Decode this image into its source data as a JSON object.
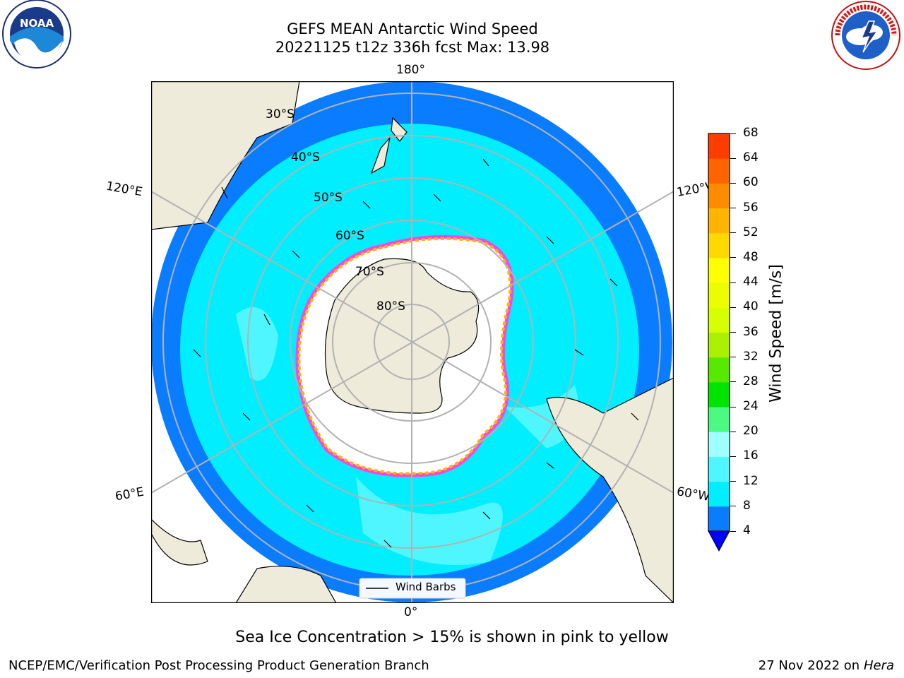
{
  "header": {
    "title_line1": "GEFS MEAN Antarctic Wind Speed",
    "title_line2": "20221125 t12z 336h fcst   Max: 13.98"
  },
  "map": {
    "lon_labels": {
      "top": "180°",
      "bottom": "0°",
      "upper_left": "120°E",
      "upper_right": "120°W",
      "lower_left": "60°E",
      "lower_right": "60°W"
    },
    "lat_labels": [
      "30°S",
      "40°S",
      "50°S",
      "60°S",
      "70°S",
      "80°S"
    ],
    "legend_label": "Wind Barbs",
    "colors": {
      "ocean_low": "#0a7cff",
      "ocean_mid": "#00eeff",
      "ocean_light": "#4ff6ff",
      "land": "#eeebdb",
      "ice": "#ffffff",
      "grid": "#b2b2b2"
    }
  },
  "colorbar": {
    "label": "Wind Speed [m/s]",
    "ticks": [
      "4",
      "8",
      "12",
      "16",
      "20",
      "24",
      "28",
      "32",
      "36",
      "40",
      "44",
      "48",
      "52",
      "56",
      "60",
      "64",
      "68"
    ],
    "colors": [
      "#0a7cff",
      "#00eeff",
      "#4ff6ff",
      "#a0ffff",
      "#4cfa82",
      "#00e400",
      "#55ea00",
      "#aaf000",
      "#d6ff00",
      "#ecfd00",
      "#ffff00",
      "#ffd800",
      "#ffb400",
      "#ff8c00",
      "#ff6400",
      "#ff3c00",
      "#ff0000"
    ],
    "under_color": "#0000ff"
  },
  "caption": "Sea Ice Concentration > 15% is shown in pink to yellow",
  "footer": {
    "left": "NCEP/EMC/Verification Post Processing Product Generation Branch",
    "right_date": "27 Nov 2022 on",
    "right_machine": "Hera"
  },
  "logos": {
    "left": "NOAA",
    "right": "NATIONAL WEATHER SERVICE"
  }
}
